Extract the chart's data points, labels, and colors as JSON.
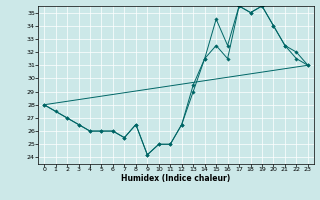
{
  "xlabel": "Humidex (Indice chaleur)",
  "xlim": [
    -0.5,
    23.5
  ],
  "ylim": [
    23.5,
    35.5
  ],
  "yticks": [
    24,
    25,
    26,
    27,
    28,
    29,
    30,
    31,
    32,
    33,
    34,
    35
  ],
  "xticks": [
    0,
    1,
    2,
    3,
    4,
    5,
    6,
    7,
    8,
    9,
    10,
    11,
    12,
    13,
    14,
    15,
    16,
    17,
    18,
    19,
    20,
    21,
    22,
    23
  ],
  "bg_color": "#cce8e8",
  "line_color": "#006666",
  "line1_x": [
    0,
    1,
    2,
    3,
    4,
    5,
    6,
    7,
    8,
    9,
    10,
    11,
    12,
    13,
    14,
    15,
    16,
    17,
    18,
    19,
    20,
    21,
    22,
    23
  ],
  "line1_y": [
    28,
    27.5,
    27,
    26.5,
    26,
    26,
    26,
    25.5,
    26.5,
    24.2,
    25.0,
    25.0,
    26.5,
    29.0,
    31.5,
    32.5,
    31.5,
    35.5,
    35.0,
    35.5,
    34.0,
    32.5,
    32.0,
    31.0
  ],
  "line2_x": [
    0,
    2,
    3,
    4,
    5,
    6,
    7,
    8,
    9,
    10,
    11,
    12,
    13,
    14,
    15,
    16,
    17,
    18,
    19,
    20,
    21,
    22,
    23
  ],
  "line2_y": [
    28,
    27,
    26.5,
    26,
    26,
    26,
    25.5,
    26.5,
    24.2,
    25.0,
    25.0,
    26.5,
    29.5,
    31.5,
    34.5,
    32.5,
    35.5,
    35.0,
    35.5,
    34.0,
    32.5,
    31.5,
    31.0
  ],
  "line3_x": [
    0,
    23
  ],
  "line3_y": [
    28,
    31.0
  ]
}
